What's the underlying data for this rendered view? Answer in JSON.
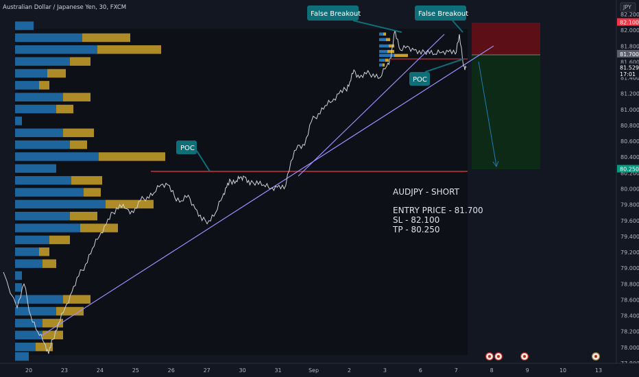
{
  "chart_data": {
    "type": "line",
    "title": "Australian Dollar / Japanese Yen, 30, FXCM",
    "currency": "JPY",
    "ylim": [
      77.8,
      82.2
    ],
    "y_ticks": [
      "82.200",
      "82.000",
      "81.800",
      "81.600",
      "81.400",
      "81.200",
      "81.000",
      "80.800",
      "80.600",
      "80.400",
      "80.200",
      "80.000",
      "79.800",
      "79.600",
      "79.400",
      "79.200",
      "79.000",
      "78.800",
      "78.600",
      "78.400",
      "78.200",
      "78.000",
      "77.800"
    ],
    "x_ticks": [
      "20",
      "23",
      "24",
      "25",
      "26",
      "27",
      "30",
      "31",
      "Sep",
      "2",
      "3",
      "6",
      "7",
      "8",
      "9",
      "10",
      "13"
    ],
    "price_labels": [
      {
        "text": "82.100",
        "value": 82.1,
        "color": "#f23645"
      },
      {
        "text": "81.700",
        "value": 81.7,
        "color": "#5d606b"
      },
      {
        "text": "81.529",
        "value": 81.529,
        "color": "#131722"
      },
      {
        "text": "17:01",
        "value": 81.45,
        "color": "#131722"
      },
      {
        "text": "80.250",
        "value": 80.25,
        "color": "#089981"
      }
    ],
    "series": [
      {
        "values": [
          [
            0,
            78.95
          ],
          [
            1,
            78.5
          ],
          [
            1.5,
            78.8
          ],
          [
            2,
            78.4
          ],
          [
            2.5,
            78.2
          ],
          [
            3,
            78.05
          ],
          [
            3.3,
            77.92
          ],
          [
            3.6,
            78.1
          ],
          [
            4,
            78.3
          ],
          [
            4.5,
            78.5
          ],
          [
            5,
            78.7
          ],
          [
            5.5,
            78.9
          ],
          [
            6,
            79.05
          ],
          [
            6.5,
            79.25
          ],
          [
            7,
            79.4
          ],
          [
            7.5,
            79.55
          ],
          [
            8,
            79.7
          ],
          [
            8.5,
            79.8
          ],
          [
            9,
            79.75
          ],
          [
            9.5,
            79.7
          ],
          [
            10,
            79.85
          ],
          [
            10.5,
            79.9
          ],
          [
            11,
            79.95
          ],
          [
            11.5,
            80.05
          ],
          [
            12,
            80.05
          ],
          [
            12.5,
            79.9
          ],
          [
            13,
            79.85
          ],
          [
            13.5,
            79.92
          ],
          [
            14,
            79.75
          ],
          [
            14.5,
            79.6
          ],
          [
            15,
            79.6
          ],
          [
            15.5,
            79.7
          ],
          [
            16,
            79.9
          ],
          [
            16.3,
            80.02
          ],
          [
            16.6,
            80.1
          ],
          [
            17,
            80.1
          ],
          [
            17.3,
            80.15
          ],
          [
            17.6,
            80.15
          ],
          [
            18,
            80.05
          ],
          [
            18.5,
            80.1
          ],
          [
            19,
            80.05
          ],
          [
            19.5,
            80.0
          ],
          [
            20,
            80.02
          ],
          [
            20.5,
            80.0
          ],
          [
            21,
            80.35
          ],
          [
            21.5,
            80.55
          ],
          [
            22,
            80.55
          ],
          [
            22.5,
            80.85
          ],
          [
            23,
            80.95
          ],
          [
            23.5,
            81.05
          ],
          [
            24,
            81.1
          ],
          [
            24.5,
            81.2
          ],
          [
            25,
            81.25
          ],
          [
            25.3,
            81.35
          ],
          [
            25.6,
            81.5
          ],
          [
            26,
            81.4
          ],
          [
            26.5,
            81.45
          ],
          [
            27,
            81.45
          ],
          [
            27.5,
            81.4
          ],
          [
            28,
            81.55
          ],
          [
            28.3,
            81.65
          ],
          [
            28.6,
            82.0
          ],
          [
            29,
            81.75
          ],
          [
            29.5,
            81.8
          ],
          [
            30,
            81.75
          ],
          [
            30.5,
            81.7
          ],
          [
            31,
            81.75
          ],
          [
            31.5,
            81.7
          ],
          [
            32,
            81.72
          ],
          [
            32.5,
            81.73
          ],
          [
            33,
            81.7
          ],
          [
            33.3,
            81.95
          ],
          [
            33.6,
            81.55
          ],
          [
            33.8,
            81.53
          ]
        ]
      }
    ],
    "volume_profile": [
      {
        "price": 82.05,
        "blue": 27,
        "gold": 0
      },
      {
        "price": 81.9,
        "blue": 98,
        "gold": 70
      },
      {
        "price": 81.75,
        "blue": 120,
        "gold": 93
      },
      {
        "price": 81.6,
        "blue": 80,
        "gold": 30
      },
      {
        "price": 81.45,
        "blue": 47,
        "gold": 27
      },
      {
        "price": 81.3,
        "blue": 35,
        "gold": 15
      },
      {
        "price": 81.15,
        "blue": 70,
        "gold": 40
      },
      {
        "price": 81.0,
        "blue": 60,
        "gold": 25
      },
      {
        "price": 80.85,
        "blue": 10,
        "gold": 0
      },
      {
        "price": 80.7,
        "blue": 70,
        "gold": 45
      },
      {
        "price": 80.55,
        "blue": 80,
        "gold": 25
      },
      {
        "price": 80.4,
        "blue": 122,
        "gold": 97
      },
      {
        "price": 80.25,
        "blue": 60,
        "gold": 0
      },
      {
        "price": 80.1,
        "blue": 82,
        "gold": 45
      },
      {
        "price": 79.95,
        "blue": 100,
        "gold": 25
      },
      {
        "price": 79.8,
        "blue": 132,
        "gold": 70
      },
      {
        "price": 79.65,
        "blue": 80,
        "gold": 40
      },
      {
        "price": 79.5,
        "blue": 95,
        "gold": 55
      },
      {
        "price": 79.35,
        "blue": 50,
        "gold": 30
      },
      {
        "price": 79.2,
        "blue": 35,
        "gold": 15
      },
      {
        "price": 79.05,
        "blue": 40,
        "gold": 20
      },
      {
        "price": 78.9,
        "blue": 10,
        "gold": 0
      },
      {
        "price": 78.75,
        "blue": 10,
        "gold": 0
      },
      {
        "price": 78.6,
        "blue": 70,
        "gold": 40
      },
      {
        "price": 78.45,
        "blue": 60,
        "gold": 40
      },
      {
        "price": 78.3,
        "blue": 40,
        "gold": 30
      },
      {
        "price": 78.15,
        "blue": 40,
        "gold": 30
      },
      {
        "price": 78.0,
        "blue": 30,
        "gold": 25
      },
      {
        "price": 77.88,
        "blue": 20,
        "gold": 0
      }
    ],
    "poc_level": 80.22,
    "trade": {
      "entry": 81.7,
      "sl": 82.1,
      "tp": 80.25
    },
    "labels": {
      "poc_left": "POC",
      "poc_right": "POC",
      "breakout_left": "False Breakout",
      "breakout_right": "False Breakout",
      "note_line1": "AUDJPY - SHORT",
      "note_line2": "ENTRY PRICE - 81.700",
      "note_line3": "SL - 82.100",
      "note_line4": "TP - 80.250"
    },
    "colors": {
      "background": "#131722",
      "price": "#d1d4dc",
      "poc_line": "#f23645",
      "trendline": "#9b8fff",
      "vp_blue": "#2174b5",
      "vp_gold": "#c9a22a",
      "callout": "#0e6f79",
      "stop_zone": "#5c0f16",
      "target_zone": "#0d2a17",
      "arrow": "#1f7bb8"
    }
  }
}
